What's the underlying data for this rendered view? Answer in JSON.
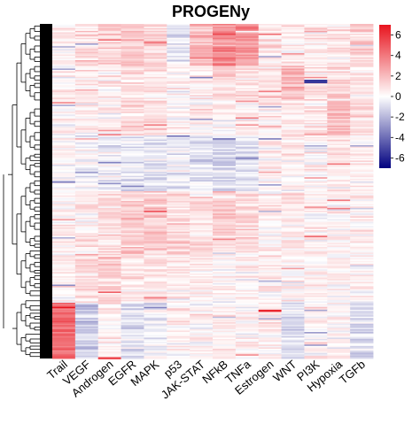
{
  "chart_data": {
    "type": "heatmap",
    "title": "PROGENy",
    "columns": [
      "Trail",
      "VEGF",
      "Androgen",
      "EGFR",
      "MAPK",
      "p53",
      "JAK-STAT",
      "NFkB",
      "TNFa",
      "Estrogen",
      "WNT",
      "PI3K",
      "Hypoxia",
      "TGFb"
    ],
    "color_scale": {
      "ticks": [
        6,
        4,
        2,
        0,
        -2,
        -4,
        -6
      ],
      "range": [
        -7,
        7
      ],
      "low_color": "#00007F",
      "mid_color": "#FFFFFF",
      "high_color": "#E8141E"
    },
    "row_dendrogram": true,
    "row_blocks": [
      {
        "rows": 30,
        "values": [
          0.3,
          1.0,
          1.2,
          1.6,
          1.2,
          -0.6,
          2.2,
          3.2,
          3.0,
          0.6,
          0.4,
          0.5,
          0.6,
          1.3
        ]
      },
      {
        "rows": 25,
        "values": [
          0.2,
          0.8,
          0.5,
          0.9,
          0.8,
          0.3,
          0.6,
          1.1,
          0.8,
          0.7,
          2.0,
          0.6,
          1.0,
          0.6
        ]
      },
      {
        "rows": 25,
        "values": [
          0.2,
          0.4,
          0.3,
          1.1,
          1.0,
          0.5,
          0.4,
          0.2,
          0.3,
          0.5,
          0.6,
          0.7,
          2.0,
          1.0
        ]
      },
      {
        "rows": 40,
        "values": [
          0.2,
          -0.2,
          -0.4,
          -0.6,
          -0.7,
          -0.5,
          -0.8,
          -0.9,
          -0.8,
          0.3,
          0.3,
          0.2,
          0.6,
          0.4
        ]
      },
      {
        "rows": 45,
        "values": [
          0.3,
          0.6,
          0.8,
          1.5,
          1.6,
          1.0,
          0.9,
          1.3,
          1.2,
          0.4,
          0.6,
          0.3,
          0.4,
          0.5
        ]
      },
      {
        "rows": 35,
        "values": [
          0.4,
          0.8,
          1.3,
          0.9,
          0.8,
          0.6,
          0.5,
          0.4,
          0.3,
          0.5,
          0.4,
          0.3,
          0.3,
          0.2
        ]
      },
      {
        "rows": 40,
        "values": [
          4.5,
          -1.5,
          0.3,
          -0.8,
          -0.6,
          0.4,
          0.2,
          0.5,
          0.3,
          0.5,
          -0.7,
          0.4,
          0.2,
          -0.9
        ]
      }
    ]
  }
}
